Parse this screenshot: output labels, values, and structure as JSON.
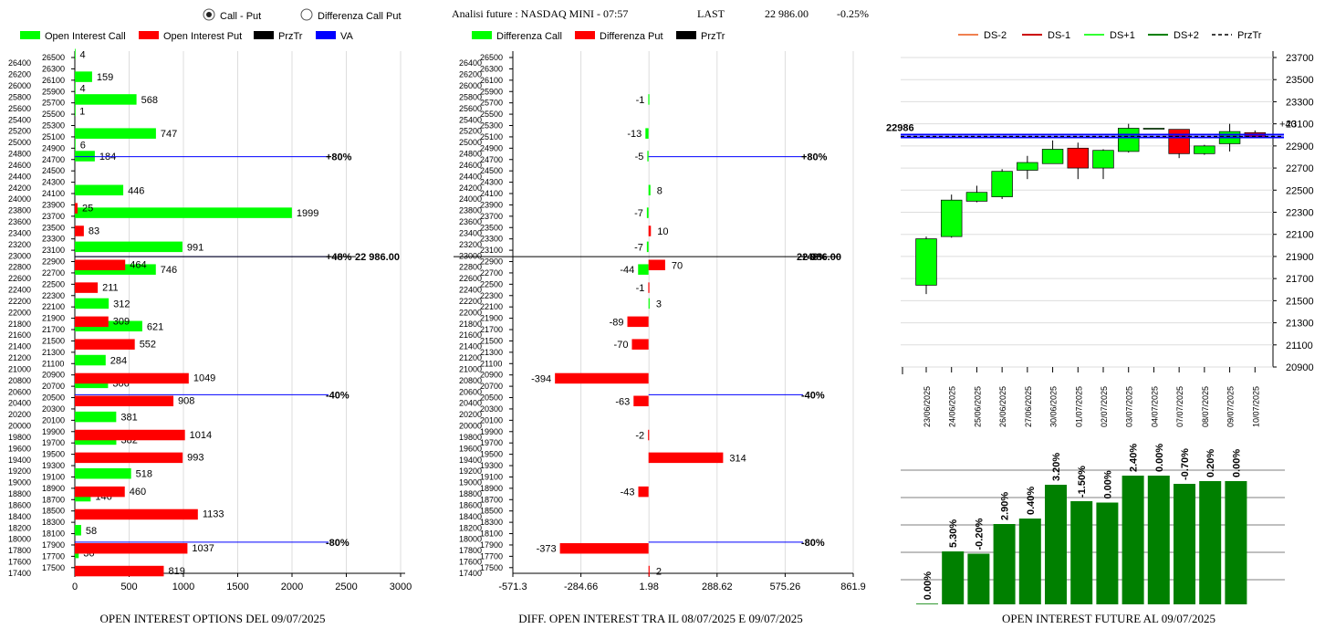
{
  "header": {
    "radio_call_put": "Call - Put",
    "radio_diff": "Differenza Call Put",
    "radio_selected": "call_put",
    "analysis": "Analisi future : NASDAQ MINI - 07:57",
    "last_label": "LAST",
    "last_value": "22 986.00",
    "change": "-0.25%"
  },
  "colors": {
    "call": "#00ff00",
    "put": "#ff0000",
    "prztr": "#000000",
    "va": "#0000ff",
    "future_bar": "#008000"
  },
  "chart_data": [
    {
      "id": "oi_options",
      "type": "bar",
      "orientation": "horizontal",
      "title": "OPEN INTEREST OPTIONS DEL 09/07/2025",
      "legend": [
        "Open Interest Call",
        "Open Interest Put",
        "PrzTr",
        "VA"
      ],
      "xlim": [
        0,
        3000
      ],
      "xticks": [
        0,
        500,
        1000,
        1500,
        2000,
        2500,
        3000
      ],
      "strikes_even": [
        26400,
        26200,
        26000,
        25800,
        25600,
        25400,
        25200,
        25000,
        24800,
        24600,
        24400,
        24200,
        24000,
        23800,
        23600,
        23400,
        23200,
        23000,
        22800,
        22600,
        22400,
        22200,
        22000,
        21800,
        21600,
        21400,
        21200,
        21000,
        20800,
        20600,
        20400,
        20200,
        20000,
        19800,
        19600,
        19400,
        19200,
        19000,
        18800,
        18600,
        18400,
        18200,
        18000,
        17800,
        17600,
        17400
      ],
      "strikes_odd": [
        26500,
        26300,
        26100,
        25900,
        25700,
        25500,
        25300,
        25100,
        24900,
        24700,
        24500,
        24300,
        24100,
        23900,
        23700,
        23500,
        23300,
        23100,
        22900,
        22700,
        22500,
        22300,
        22100,
        21900,
        21700,
        21500,
        21300,
        21100,
        20900,
        20700,
        20500,
        20300,
        20100,
        19900,
        19700,
        19500,
        19300,
        19100,
        18900,
        18700,
        18500,
        18300,
        18100,
        17900,
        17700,
        17500
      ],
      "call": [
        {
          "strike": 26500,
          "value": 4
        },
        {
          "strike": 26100,
          "value": 159
        },
        {
          "strike": 25900,
          "value": 4
        },
        {
          "strike": 25700,
          "value": 568
        },
        {
          "strike": 25500,
          "value": 1
        },
        {
          "strike": 25100,
          "value": 747
        },
        {
          "strike": 24900,
          "value": 6
        },
        {
          "strike": 24700,
          "value": 184
        },
        {
          "strike": 24100,
          "value": 446
        },
        {
          "strike": 23700,
          "value": 1999
        },
        {
          "strike": 23100,
          "value": 991
        },
        {
          "strike": 22700,
          "value": 746
        },
        {
          "strike": 22100,
          "value": 312
        },
        {
          "strike": 21700,
          "value": 621
        },
        {
          "strike": 21100,
          "value": 284
        },
        {
          "strike": 20700,
          "value": 306
        },
        {
          "strike": 20100,
          "value": 381
        },
        {
          "strike": 19700,
          "value": 382
        },
        {
          "strike": 19100,
          "value": 518
        },
        {
          "strike": 18700,
          "value": 146
        },
        {
          "strike": 18100,
          "value": 58
        },
        {
          "strike": 17700,
          "value": 36
        }
      ],
      "put": [
        {
          "strike": 23900,
          "value": 25
        },
        {
          "strike": 23500,
          "value": 83
        },
        {
          "strike": 22900,
          "value": 464
        },
        {
          "strike": 22500,
          "value": 211
        },
        {
          "strike": 21900,
          "value": 309
        },
        {
          "strike": 21500,
          "value": 552
        },
        {
          "strike": 20900,
          "value": 1049
        },
        {
          "strike": 20500,
          "value": 908
        },
        {
          "strike": 19900,
          "value": 1014
        },
        {
          "strike": 19500,
          "value": 993
        },
        {
          "strike": 18900,
          "value": 460
        },
        {
          "strike": 18500,
          "value": 1133
        },
        {
          "strike": 17900,
          "value": 1037
        },
        {
          "strike": 17500,
          "value": 819
        }
      ],
      "lines": [
        {
          "strike": 24750,
          "label": "+80%",
          "kind": "va"
        },
        {
          "strike": 22986,
          "label": "+48%",
          "kind": "va"
        },
        {
          "strike": 20550,
          "label": "-40%",
          "kind": "va"
        },
        {
          "strike": 17950,
          "label": "-80%",
          "kind": "va"
        }
      ],
      "price_label": "22 986.00"
    },
    {
      "id": "oi_diff",
      "type": "bar",
      "orientation": "horizontal",
      "title": "DIFF. OPEN INTEREST TRA IL 08/07/2025 E 09/07/2025",
      "legend": [
        "Differenza Call",
        "Differenza Put",
        "PrzTr"
      ],
      "xlim": [
        -571.3,
        861.9
      ],
      "xticks": [
        "-571.3",
        "-284.66",
        "1.98",
        "288.62",
        "575.26",
        "861.9"
      ],
      "call": [
        {
          "strike": 25700,
          "value": -1
        },
        {
          "strike": 25100,
          "value": -13
        },
        {
          "strike": 24700,
          "value": -5
        },
        {
          "strike": 24100,
          "value": 8
        },
        {
          "strike": 23700,
          "value": -7
        },
        {
          "strike": 23100,
          "value": -7
        },
        {
          "strike": 22700,
          "value": -44
        },
        {
          "strike": 22100,
          "value": 3
        }
      ],
      "put": [
        {
          "strike": 23500,
          "value": 10
        },
        {
          "strike": 22900,
          "value": 70
        },
        {
          "strike": 22500,
          "value": -1
        },
        {
          "strike": 21900,
          "value": -89
        },
        {
          "strike": 21500,
          "value": -70
        },
        {
          "strike": 20900,
          "value": -394
        },
        {
          "strike": 20500,
          "value": -63
        },
        {
          "strike": 19900,
          "value": -2
        },
        {
          "strike": 19500,
          "value": 314
        },
        {
          "strike": 18900,
          "value": -43
        },
        {
          "strike": 17900,
          "value": -373
        },
        {
          "strike": 17500,
          "value": 2
        }
      ],
      "lines": [
        {
          "strike": 24750,
          "label": "+80%"
        },
        {
          "strike": 22986,
          "label": "+48%"
        },
        {
          "strike": 20550,
          "label": "-40%"
        },
        {
          "strike": 17950,
          "label": "-80%"
        }
      ],
      "price_label": "22 986.00"
    },
    {
      "id": "candles",
      "type": "candlestick",
      "legend": [
        "DS-2",
        "DS-1",
        "DS+1",
        "DS+2",
        "PrzTr"
      ],
      "legend_colors": [
        "#f08050",
        "#cc0000",
        "#33ff33",
        "#008000",
        "#000000"
      ],
      "ylim": [
        20900,
        23700
      ],
      "yticks": [
        23700,
        23500,
        23300,
        23100,
        22900,
        22700,
        22500,
        22300,
        22100,
        21900,
        21700,
        21500,
        21300,
        21100,
        20900
      ],
      "price_line": 22986,
      "price_line_label": "22986",
      "right_label": "+40",
      "candles": [
        {
          "date": "23/06/2025",
          "open": 21640,
          "close": 22060,
          "high": 22080,
          "low": 21560
        },
        {
          "date": "24/06/2025",
          "open": 22080,
          "close": 22410,
          "high": 22460,
          "low": 22070
        },
        {
          "date": "25/06/2025",
          "open": 22400,
          "close": 22480,
          "high": 22540,
          "low": 22390
        },
        {
          "date": "26/06/2025",
          "open": 22440,
          "close": 22670,
          "high": 22690,
          "low": 22420
        },
        {
          "date": "27/06/2025",
          "open": 22680,
          "close": 22750,
          "high": 22810,
          "low": 22600
        },
        {
          "date": "30/06/2025",
          "open": 22740,
          "close": 22870,
          "high": 22950,
          "low": 22740
        },
        {
          "date": "01/07/2025",
          "open": 22880,
          "close": 22700,
          "high": 22930,
          "low": 22600
        },
        {
          "date": "02/07/2025",
          "open": 22700,
          "close": 22860,
          "high": 22870,
          "low": 22600
        },
        {
          "date": "03/07/2025",
          "open": 22850,
          "close": 23060,
          "high": 23100,
          "low": 22840
        },
        {
          "date": "04/07/2025",
          "open": 23060,
          "close": 23060,
          "high": 23060,
          "low": 23060
        },
        {
          "date": "07/07/2025",
          "open": 23050,
          "close": 22830,
          "high": 23050,
          "low": 22790
        },
        {
          "date": "08/07/2025",
          "open": 22830,
          "close": 22900,
          "high": 22910,
          "low": 22820
        },
        {
          "date": "09/07/2025",
          "open": 22920,
          "close": 23030,
          "high": 23100,
          "low": 22850
        },
        {
          "date": "10/07/2025",
          "open": 23020,
          "close": 22980,
          "high": 23040,
          "low": 22970
        }
      ]
    },
    {
      "id": "future_oi",
      "type": "bar",
      "title": "OPEN INTEREST FUTURE AL 09/07/2025",
      "categories": [
        "23/06/2025",
        "24/06/2025",
        "25/06/2025",
        "26/06/2025",
        "27/06/2025",
        "30/06/2025",
        "01/07/2025",
        "02/07/2025",
        "03/07/2025",
        "04/07/2025",
        "07/07/2025",
        "08/07/2025",
        "09/07/2025"
      ],
      "labels": [
        "0.00%",
        "5.30%",
        "-0.20%",
        "2.90%",
        "0.40%",
        "3.20%",
        "-1.50%",
        "0.00%",
        "2.40%",
        "0.00%",
        "-0.70%",
        "0.20%",
        "0.00%"
      ],
      "values": [
        0.8,
        58,
        55.5,
        88,
        94,
        131,
        113,
        111.5,
        141,
        141,
        132,
        135,
        135
      ],
      "ylim": [
        0,
        150
      ]
    }
  ]
}
